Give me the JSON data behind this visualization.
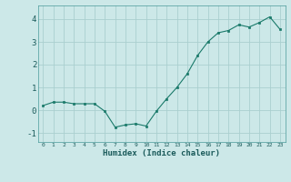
{
  "x": [
    0,
    1,
    2,
    3,
    4,
    5,
    6,
    7,
    8,
    9,
    10,
    11,
    12,
    13,
    14,
    15,
    16,
    17,
    18,
    19,
    20,
    21,
    22,
    23
  ],
  "y": [
    0.2,
    0.35,
    0.35,
    0.28,
    0.28,
    0.28,
    -0.05,
    -0.75,
    -0.65,
    -0.6,
    -0.7,
    -0.05,
    0.5,
    1.0,
    1.6,
    2.4,
    3.0,
    3.4,
    3.5,
    3.75,
    3.65,
    3.85,
    4.1,
    3.55
  ],
  "xlabel": "Humidex (Indice chaleur)",
  "ylim": [
    -1.4,
    4.6
  ],
  "xlim": [
    -0.5,
    23.5
  ],
  "yticks": [
    -1,
    0,
    1,
    2,
    3,
    4
  ],
  "xticks": [
    0,
    1,
    2,
    3,
    4,
    5,
    6,
    7,
    8,
    9,
    10,
    11,
    12,
    13,
    14,
    15,
    16,
    17,
    18,
    19,
    20,
    21,
    22,
    23
  ],
  "line_color": "#1a7a6a",
  "marker_color": "#1a7a6a",
  "bg_color": "#cce8e8",
  "grid_color": "#aacfcf",
  "axes_bg": "#cce8e8"
}
